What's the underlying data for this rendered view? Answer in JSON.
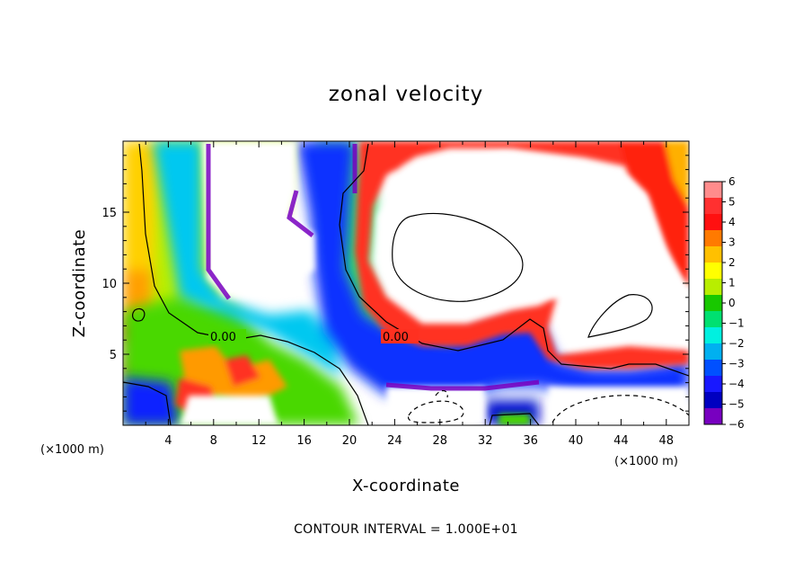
{
  "chart_data": {
    "type": "heatmap",
    "title": "zonal velocity",
    "xlabel": "X-coordinate",
    "ylabel": "Z-coordinate",
    "x_unit": "(×1000 m)",
    "xlim": [
      0,
      50
    ],
    "ylim": [
      0,
      20
    ],
    "xticks": [
      "4",
      "8",
      "12",
      "16",
      "20",
      "24",
      "28",
      "32",
      "36",
      "40",
      "44",
      "48"
    ],
    "yticks": [
      "5",
      "10",
      "15"
    ],
    "colorbar": {
      "range": [
        -6,
        6
      ],
      "labels": [
        "6",
        "5",
        "4",
        "3",
        "2",
        "1",
        "0",
        "−1",
        "−2",
        "−3",
        "−4",
        "−5",
        "−6"
      ],
      "colors": [
        "#ff8c8c",
        "#ff3030",
        "#ff1010",
        "#ff7a00",
        "#ffc000",
        "#ffff00",
        "#b8ee00",
        "#18c800",
        "#00e070",
        "#00f0e0",
        "#00b0f0",
        "#0050ff",
        "#1818ff",
        "#0000c0",
        "#7800c0"
      ]
    },
    "contour_labels": [
      "0.00",
      "0.00"
    ],
    "footnote": "CONTOUR INTERVAL = 1.000E+01"
  }
}
